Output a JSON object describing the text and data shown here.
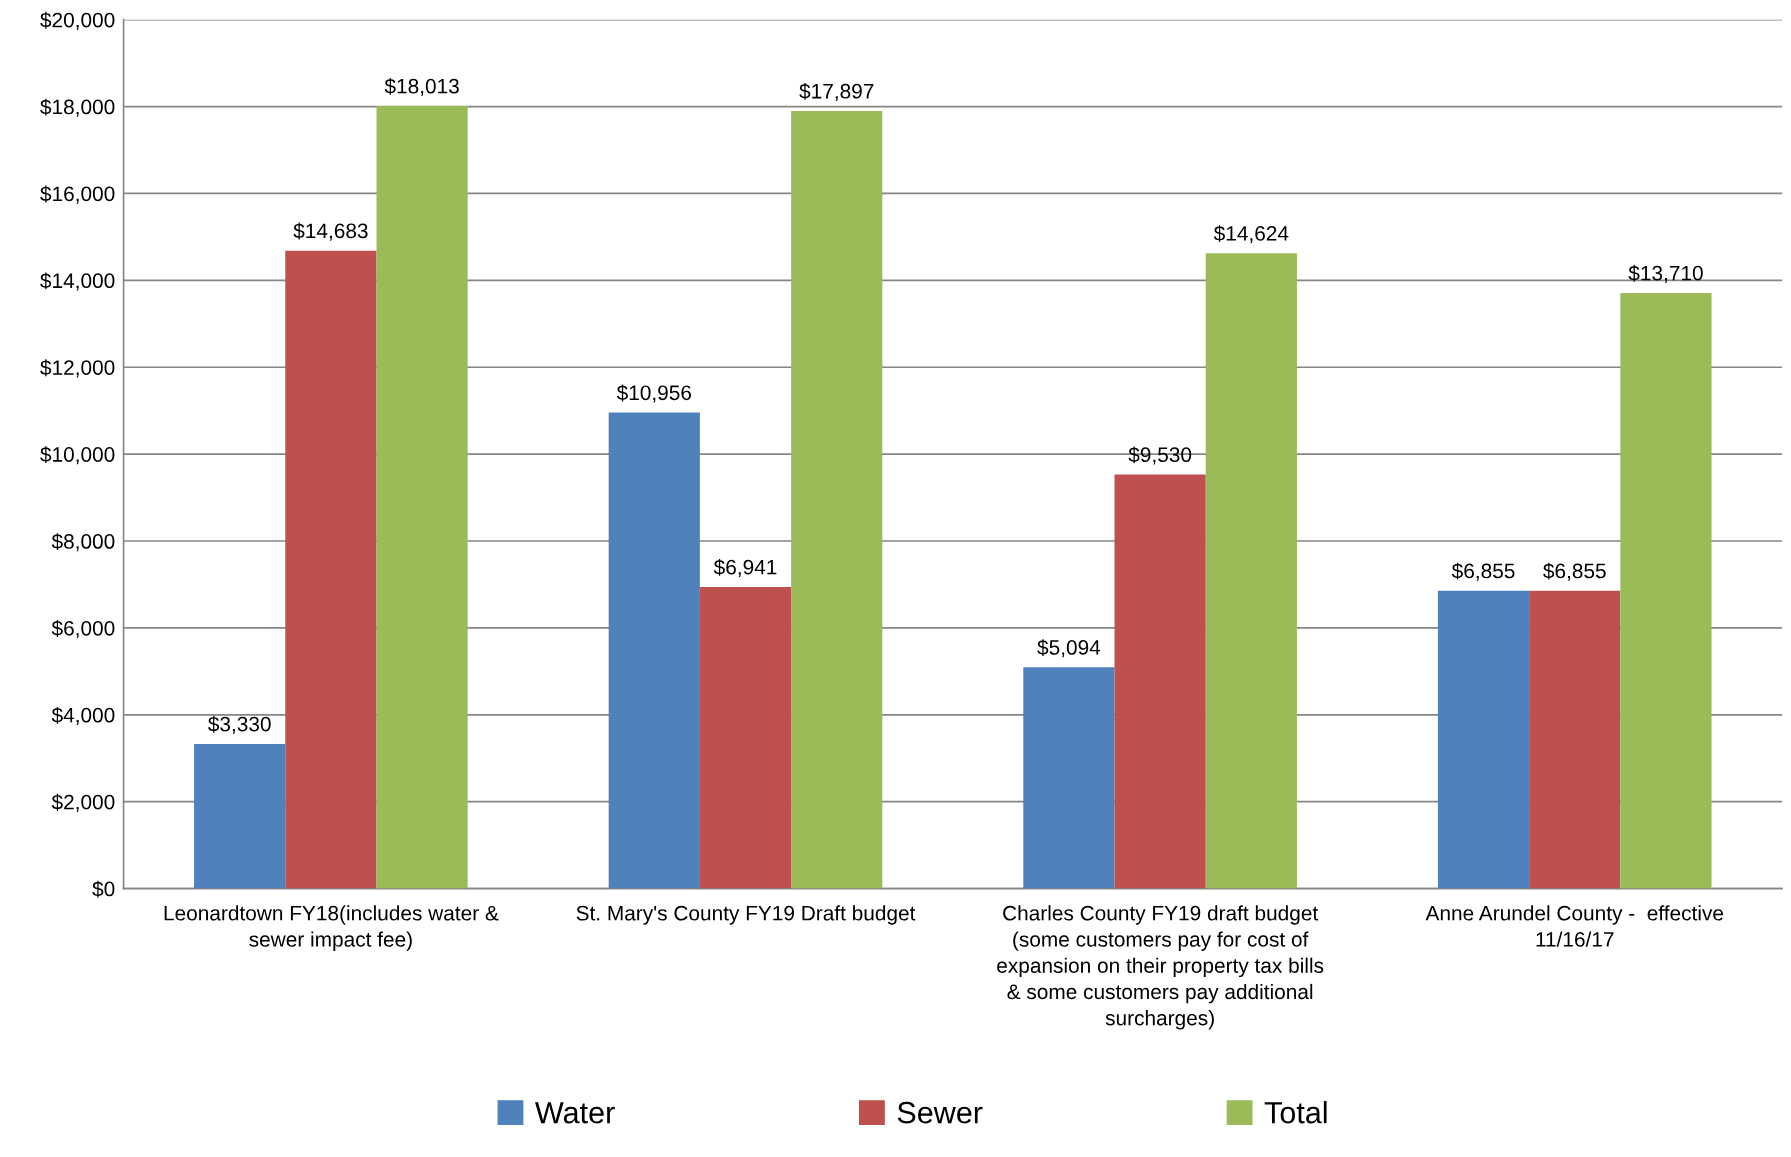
{
  "chart_data": {
    "type": "bar",
    "categories": [
      "Leonardtown FY18(includes water & sewer impact fee)",
      "St. Mary's County FY19 Draft budget",
      "Charles County FY19 draft budget (some customers pay for cost of expansion on their property tax bills & some customers pay additional surcharges)",
      "Anne Arundel County -  effective 11/16/17"
    ],
    "series": [
      {
        "name": "Water",
        "color": "#4f81bd",
        "values": [
          3330,
          10956,
          5094,
          6855
        ],
        "value_labels": [
          "$3,330",
          "$10,956",
          "$5,094",
          "$6,855"
        ]
      },
      {
        "name": "Sewer",
        "color": "#c0504d",
        "values": [
          14683,
          6941,
          9530,
          6855
        ],
        "value_labels": [
          "$14,683",
          "$6,941",
          "$9,530",
          "$6,855"
        ]
      },
      {
        "name": "Total",
        "color": "#9bbb59",
        "values": [
          18013,
          17897,
          14624,
          13710
        ],
        "value_labels": [
          "$18,013",
          "$17,897",
          "$14,624",
          "$13,710"
        ]
      }
    ],
    "ylim": [
      0,
      20000
    ],
    "yticks": [
      {
        "value": 0,
        "label": "$0"
      },
      {
        "value": 2000,
        "label": "$2,000"
      },
      {
        "value": 4000,
        "label": "$4,000"
      },
      {
        "value": 6000,
        "label": "$6,000"
      },
      {
        "value": 8000,
        "label": "$8,000"
      },
      {
        "value": 10000,
        "label": "$10,000"
      },
      {
        "value": 12000,
        "label": "$12,000"
      },
      {
        "value": 14000,
        "label": "$14,000"
      },
      {
        "value": 16000,
        "label": "$16,000"
      },
      {
        "value": 18000,
        "label": "$18,000"
      },
      {
        "value": 20000,
        "label": "$20,000"
      }
    ],
    "grid": "y",
    "legend": "bottom"
  }
}
